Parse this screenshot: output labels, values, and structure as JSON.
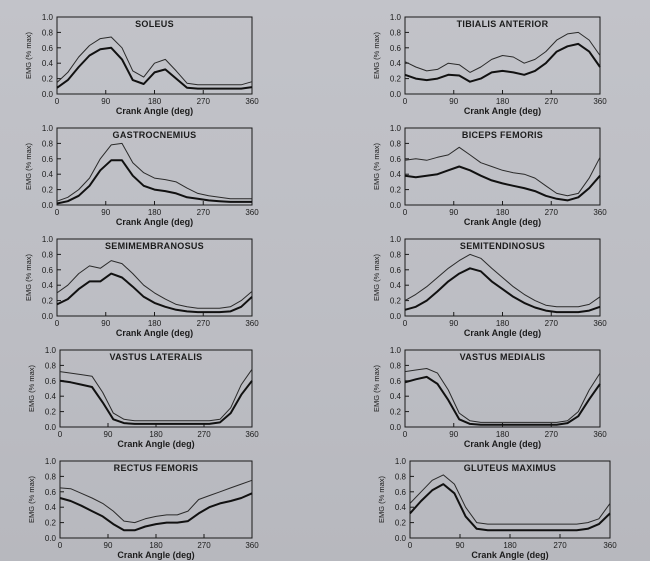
{
  "chart_data": [
    {
      "type": "line",
      "title": "SOLEUS",
      "xlabel": "Crank Angle (deg)",
      "ylabel": "EMG (% max)",
      "xlim": [
        0,
        360
      ],
      "ylim": [
        0,
        1.0
      ],
      "xticks": [
        0,
        90,
        180,
        270,
        360
      ],
      "yticks": [
        0.0,
        0.2,
        0.4,
        0.6,
        0.8,
        1.0
      ],
      "x": [
        0,
        20,
        40,
        60,
        80,
        100,
        120,
        140,
        160,
        180,
        200,
        220,
        240,
        260,
        280,
        300,
        320,
        340,
        360
      ],
      "series": [
        {
          "values": [
            0.15,
            0.28,
            0.48,
            0.63,
            0.72,
            0.74,
            0.6,
            0.3,
            0.22,
            0.4,
            0.45,
            0.3,
            0.14,
            0.12,
            0.12,
            0.12,
            0.12,
            0.12,
            0.16
          ]
        },
        {
          "values": [
            0.08,
            0.18,
            0.35,
            0.5,
            0.58,
            0.6,
            0.45,
            0.18,
            0.13,
            0.28,
            0.32,
            0.2,
            0.08,
            0.07,
            0.07,
            0.07,
            0.07,
            0.07,
            0.09
          ]
        }
      ]
    },
    {
      "type": "line",
      "title": "TIBIALIS ANTERIOR",
      "xlabel": "Crank Angle (deg)",
      "ylabel": "EMG (% max)",
      "xlim": [
        0,
        360
      ],
      "ylim": [
        0,
        1.0
      ],
      "xticks": [
        0,
        90,
        180,
        270,
        360
      ],
      "yticks": [
        0.0,
        0.2,
        0.4,
        0.6,
        0.8,
        1.0
      ],
      "x": [
        0,
        20,
        40,
        60,
        80,
        100,
        120,
        140,
        160,
        180,
        200,
        220,
        240,
        260,
        280,
        300,
        320,
        340,
        360
      ],
      "series": [
        {
          "values": [
            0.42,
            0.35,
            0.3,
            0.32,
            0.4,
            0.38,
            0.28,
            0.35,
            0.45,
            0.5,
            0.48,
            0.4,
            0.45,
            0.55,
            0.7,
            0.78,
            0.8,
            0.7,
            0.5
          ]
        },
        {
          "values": [
            0.25,
            0.2,
            0.18,
            0.2,
            0.25,
            0.24,
            0.16,
            0.2,
            0.28,
            0.3,
            0.28,
            0.25,
            0.3,
            0.4,
            0.55,
            0.62,
            0.65,
            0.55,
            0.35
          ]
        }
      ]
    },
    {
      "type": "line",
      "title": "GASTROCNEMIUS",
      "xlabel": "Crank Angle (deg)",
      "ylabel": "EMG (% max)",
      "xlim": [
        0,
        360
      ],
      "ylim": [
        0,
        1.0
      ],
      "xticks": [
        0,
        90,
        180,
        270,
        360
      ],
      "yticks": [
        0.0,
        0.2,
        0.4,
        0.6,
        0.8,
        1.0
      ],
      "x": [
        0,
        20,
        40,
        60,
        80,
        100,
        120,
        140,
        160,
        180,
        200,
        220,
        240,
        260,
        280,
        300,
        320,
        340,
        360
      ],
      "series": [
        {
          "values": [
            0.05,
            0.1,
            0.2,
            0.35,
            0.6,
            0.78,
            0.8,
            0.55,
            0.42,
            0.35,
            0.33,
            0.3,
            0.22,
            0.15,
            0.12,
            0.1,
            0.08,
            0.08,
            0.08
          ]
        },
        {
          "values": [
            0.02,
            0.05,
            0.12,
            0.25,
            0.45,
            0.58,
            0.58,
            0.38,
            0.25,
            0.2,
            0.18,
            0.15,
            0.1,
            0.08,
            0.06,
            0.05,
            0.04,
            0.04,
            0.04
          ]
        }
      ]
    },
    {
      "type": "line",
      "title": "BICEPS FEMORIS",
      "xlabel": "Crank Angle (deg)",
      "ylabel": "EMG (% max)",
      "xlim": [
        0,
        360
      ],
      "ylim": [
        0,
        1.0
      ],
      "xticks": [
        0,
        90,
        180,
        270,
        360
      ],
      "yticks": [
        0.0,
        0.2,
        0.4,
        0.6,
        0.8,
        1.0
      ],
      "x": [
        0,
        20,
        40,
        60,
        80,
        100,
        120,
        140,
        160,
        180,
        200,
        220,
        240,
        260,
        280,
        300,
        320,
        340,
        360
      ],
      "series": [
        {
          "values": [
            0.58,
            0.6,
            0.58,
            0.62,
            0.65,
            0.75,
            0.65,
            0.55,
            0.5,
            0.45,
            0.42,
            0.4,
            0.35,
            0.25,
            0.15,
            0.12,
            0.15,
            0.35,
            0.62
          ]
        },
        {
          "values": [
            0.38,
            0.36,
            0.38,
            0.4,
            0.45,
            0.5,
            0.45,
            0.38,
            0.32,
            0.28,
            0.25,
            0.22,
            0.18,
            0.12,
            0.08,
            0.06,
            0.1,
            0.22,
            0.38
          ]
        }
      ]
    },
    {
      "type": "line",
      "title": "SEMIMEMBRANOSUS",
      "xlabel": "Crank Angle (deg)",
      "ylabel": "EMG (% max)",
      "xlim": [
        0,
        360
      ],
      "ylim": [
        0,
        1.0
      ],
      "xticks": [
        0,
        90,
        180,
        270,
        360
      ],
      "yticks": [
        0.0,
        0.2,
        0.4,
        0.6,
        0.8,
        1.0
      ],
      "x": [
        0,
        20,
        40,
        60,
        80,
        100,
        120,
        140,
        160,
        180,
        200,
        220,
        240,
        260,
        280,
        300,
        320,
        340,
        360
      ],
      "series": [
        {
          "values": [
            0.3,
            0.4,
            0.55,
            0.65,
            0.62,
            0.72,
            0.68,
            0.55,
            0.4,
            0.3,
            0.22,
            0.15,
            0.12,
            0.1,
            0.1,
            0.1,
            0.12,
            0.2,
            0.32
          ]
        },
        {
          "values": [
            0.15,
            0.22,
            0.35,
            0.45,
            0.45,
            0.55,
            0.5,
            0.38,
            0.25,
            0.17,
            0.12,
            0.08,
            0.06,
            0.05,
            0.05,
            0.05,
            0.06,
            0.12,
            0.25
          ]
        }
      ]
    },
    {
      "type": "line",
      "title": "SEMITENDINOSUS",
      "xlabel": "Crank Angle (deg)",
      "ylabel": "EMG (% max)",
      "xlim": [
        0,
        360
      ],
      "ylim": [
        0,
        1.0
      ],
      "xticks": [
        0,
        90,
        180,
        270,
        360
      ],
      "yticks": [
        0.0,
        0.2,
        0.4,
        0.6,
        0.8,
        1.0
      ],
      "x": [
        0,
        20,
        40,
        60,
        80,
        100,
        120,
        140,
        160,
        180,
        200,
        220,
        240,
        260,
        280,
        300,
        320,
        340,
        360
      ],
      "series": [
        {
          "values": [
            0.2,
            0.28,
            0.38,
            0.5,
            0.62,
            0.72,
            0.8,
            0.75,
            0.62,
            0.5,
            0.38,
            0.28,
            0.2,
            0.14,
            0.12,
            0.12,
            0.12,
            0.15,
            0.25
          ]
        },
        {
          "values": [
            0.08,
            0.12,
            0.2,
            0.32,
            0.45,
            0.55,
            0.62,
            0.58,
            0.45,
            0.35,
            0.25,
            0.17,
            0.11,
            0.07,
            0.05,
            0.05,
            0.05,
            0.07,
            0.12
          ]
        }
      ]
    },
    {
      "type": "line",
      "title": "VASTUS LATERALIS",
      "xlabel": "Crank Angle (deg)",
      "ylabel": "EMG (% max)",
      "xlim": [
        0,
        360
      ],
      "ylim": [
        0,
        1.0
      ],
      "xticks": [
        0,
        90,
        180,
        270,
        360
      ],
      "yticks": [
        0.0,
        0.2,
        0.4,
        0.6,
        0.8,
        1.0
      ],
      "x": [
        0,
        20,
        40,
        60,
        80,
        100,
        120,
        140,
        160,
        180,
        200,
        220,
        240,
        260,
        280,
        300,
        320,
        340,
        360
      ],
      "series": [
        {
          "values": [
            0.72,
            0.7,
            0.68,
            0.66,
            0.45,
            0.18,
            0.1,
            0.08,
            0.08,
            0.08,
            0.08,
            0.08,
            0.08,
            0.08,
            0.08,
            0.1,
            0.25,
            0.55,
            0.75
          ]
        },
        {
          "values": [
            0.6,
            0.58,
            0.55,
            0.52,
            0.32,
            0.1,
            0.05,
            0.04,
            0.04,
            0.04,
            0.04,
            0.04,
            0.04,
            0.04,
            0.04,
            0.06,
            0.18,
            0.42,
            0.6
          ]
        }
      ]
    },
    {
      "type": "line",
      "title": "VASTUS MEDIALIS",
      "xlabel": "Crank Angle (deg)",
      "ylabel": "EMG (% max)",
      "xlim": [
        0,
        360
      ],
      "ylim": [
        0,
        1.0
      ],
      "xticks": [
        0,
        90,
        180,
        270,
        360
      ],
      "yticks": [
        0.0,
        0.2,
        0.4,
        0.6,
        0.8,
        1.0
      ],
      "x": [
        0,
        20,
        40,
        60,
        80,
        100,
        120,
        140,
        160,
        180,
        200,
        220,
        240,
        260,
        280,
        300,
        320,
        340,
        360
      ],
      "series": [
        {
          "values": [
            0.72,
            0.74,
            0.76,
            0.7,
            0.48,
            0.18,
            0.08,
            0.06,
            0.06,
            0.06,
            0.06,
            0.06,
            0.06,
            0.06,
            0.06,
            0.08,
            0.2,
            0.48,
            0.7
          ]
        },
        {
          "values": [
            0.58,
            0.62,
            0.65,
            0.56,
            0.35,
            0.1,
            0.04,
            0.03,
            0.03,
            0.03,
            0.03,
            0.03,
            0.03,
            0.03,
            0.03,
            0.05,
            0.14,
            0.36,
            0.56
          ]
        }
      ]
    },
    {
      "type": "line",
      "title": "RECTUS FEMORIS",
      "xlabel": "Crank Angle (deg)",
      "ylabel": "EMG (% max)",
      "xlim": [
        0,
        360
      ],
      "ylim": [
        0,
        1.0
      ],
      "xticks": [
        0,
        90,
        180,
        270,
        360
      ],
      "yticks": [
        0.0,
        0.2,
        0.4,
        0.6,
        0.8,
        1.0
      ],
      "x": [
        0,
        20,
        40,
        60,
        80,
        100,
        120,
        140,
        160,
        180,
        200,
        220,
        240,
        260,
        280,
        300,
        320,
        340,
        360
      ],
      "series": [
        {
          "values": [
            0.65,
            0.64,
            0.58,
            0.52,
            0.45,
            0.35,
            0.22,
            0.2,
            0.25,
            0.28,
            0.3,
            0.3,
            0.35,
            0.5,
            0.55,
            0.6,
            0.65,
            0.7,
            0.75
          ]
        },
        {
          "values": [
            0.52,
            0.48,
            0.42,
            0.35,
            0.28,
            0.18,
            0.1,
            0.1,
            0.15,
            0.18,
            0.2,
            0.2,
            0.22,
            0.32,
            0.4,
            0.45,
            0.48,
            0.52,
            0.58
          ]
        }
      ]
    },
    {
      "type": "line",
      "title": "GLUTEUS MAXIMUS",
      "xlabel": "Crank Angle (deg)",
      "ylabel": "EMG (% max)",
      "xlim": [
        0,
        360
      ],
      "ylim": [
        0,
        1.0
      ],
      "xticks": [
        0,
        90,
        180,
        270,
        360
      ],
      "yticks": [
        0.0,
        0.2,
        0.4,
        0.6,
        0.8,
        1.0
      ],
      "x": [
        0,
        20,
        40,
        60,
        80,
        100,
        120,
        140,
        160,
        180,
        200,
        220,
        240,
        260,
        280,
        300,
        320,
        340,
        360
      ],
      "series": [
        {
          "values": [
            0.45,
            0.6,
            0.75,
            0.82,
            0.7,
            0.4,
            0.2,
            0.18,
            0.18,
            0.18,
            0.18,
            0.18,
            0.18,
            0.18,
            0.18,
            0.18,
            0.2,
            0.25,
            0.45
          ]
        },
        {
          "values": [
            0.32,
            0.48,
            0.62,
            0.7,
            0.58,
            0.28,
            0.12,
            0.1,
            0.1,
            0.1,
            0.1,
            0.1,
            0.1,
            0.1,
            0.1,
            0.1,
            0.12,
            0.18,
            0.32
          ]
        }
      ]
    }
  ]
}
